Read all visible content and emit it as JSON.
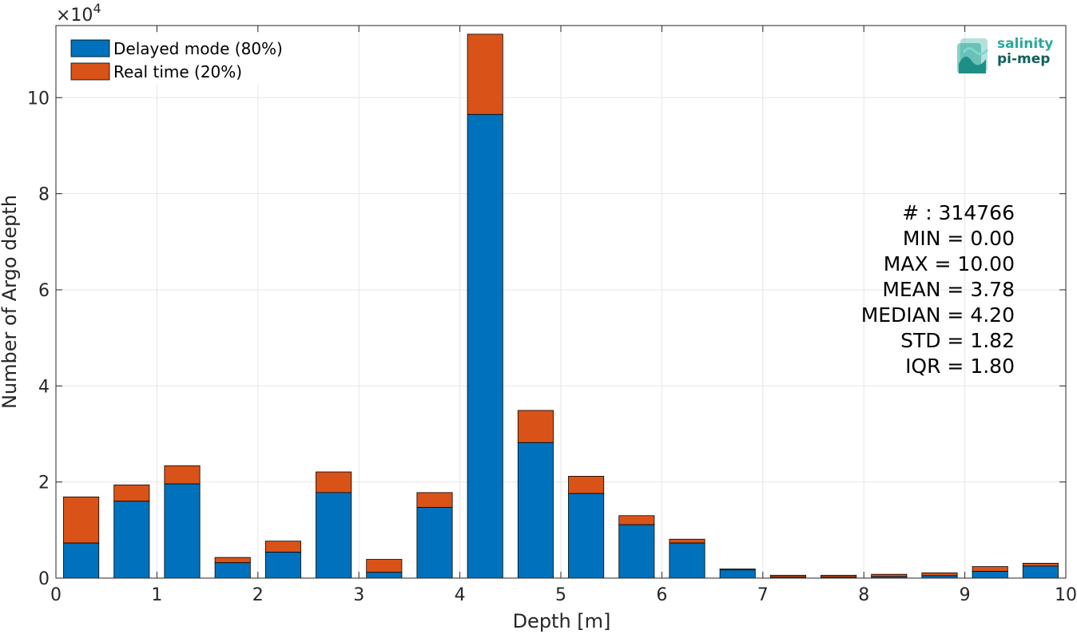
{
  "chart_data": {
    "type": "bar",
    "stacked": true,
    "xlabel": "Depth [m]",
    "ylabel": "Number of Argo depth",
    "exponent_label": "×10",
    "exponent_power": "4",
    "xlim": [
      0,
      10
    ],
    "ylim": [
      0,
      11.5
    ],
    "xticks": [
      "0",
      "1",
      "2",
      "3",
      "4",
      "5",
      "6",
      "7",
      "8",
      "9",
      "10"
    ],
    "yticks": [
      "0",
      "2",
      "4",
      "6",
      "8",
      "10"
    ],
    "grid": true,
    "legend_position": "top-left",
    "bin_centers": [
      0.25,
      0.75,
      1.25,
      1.75,
      2.25,
      2.75,
      3.25,
      3.75,
      4.25,
      4.75,
      5.25,
      5.75,
      6.25,
      6.75,
      7.25,
      7.75,
      8.25,
      8.75,
      9.25,
      9.75
    ],
    "series": [
      {
        "name": "Delayed mode (80%)",
        "color": "#0072bd",
        "values": [
          0.73,
          1.6,
          1.96,
          0.32,
          0.54,
          1.78,
          0.12,
          1.47,
          9.65,
          2.82,
          1.76,
          1.11,
          0.73,
          0.17,
          0.02,
          0.02,
          0.03,
          0.05,
          0.14,
          0.25
        ]
      },
      {
        "name": "Real time (20%)",
        "color": "#d95319",
        "values": [
          0.96,
          0.34,
          0.38,
          0.11,
          0.23,
          0.43,
          0.27,
          0.31,
          1.67,
          0.67,
          0.36,
          0.19,
          0.08,
          0.02,
          0.04,
          0.04,
          0.05,
          0.06,
          0.1,
          0.06
        ]
      }
    ],
    "stats": [
      "# : 314766",
      "MIN = 0.00",
      "MAX =  10.00",
      "MEAN = 3.78",
      "MEDIAN = 4.20",
      "STD = 1.82",
      "IQR = 1.80"
    ]
  },
  "logo": {
    "line1": "salinity",
    "line2": "pi-mep"
  }
}
